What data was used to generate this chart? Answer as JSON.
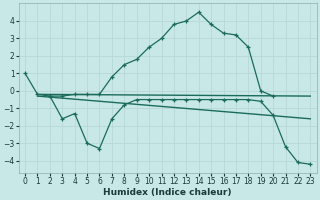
{
  "xlabel": "Humidex (Indice chaleur)",
  "xlim": [
    -0.5,
    23.5
  ],
  "ylim": [
    -4.7,
    5.0
  ],
  "yticks": [
    -4,
    -3,
    -2,
    -1,
    0,
    1,
    2,
    3,
    4
  ],
  "xticks": [
    0,
    1,
    2,
    3,
    4,
    5,
    6,
    7,
    8,
    9,
    10,
    11,
    12,
    13,
    14,
    15,
    16,
    17,
    18,
    19,
    20,
    21,
    22,
    23
  ],
  "bg_color": "#c8e8e8",
  "grid_color": "#d8ecec",
  "line_color": "#1a6b5a",
  "line1_x": [
    0,
    1,
    2,
    3,
    4,
    5,
    6,
    7,
    8,
    9,
    10,
    11,
    12,
    13,
    14,
    15,
    16,
    17,
    18,
    19,
    20
  ],
  "line1_y": [
    1.0,
    -0.2,
    -0.3,
    -0.3,
    -0.2,
    -0.2,
    -0.2,
    0.8,
    1.5,
    1.8,
    2.5,
    3.0,
    3.8,
    4.0,
    4.5,
    3.8,
    3.3,
    3.2,
    2.5,
    0.0,
    -0.3
  ],
  "line2_x": [
    2,
    3,
    4,
    5,
    6,
    7,
    8,
    9,
    10,
    11,
    12,
    13,
    14,
    15,
    16,
    17,
    18,
    19,
    20,
    21,
    22,
    23
  ],
  "line2_y": [
    -0.3,
    -1.6,
    -1.3,
    -3.0,
    -3.3,
    -1.6,
    -0.8,
    -0.5,
    -0.5,
    -0.5,
    -0.5,
    -0.5,
    -0.5,
    -0.5,
    -0.5,
    -0.5,
    -0.5,
    -0.6,
    -1.4,
    -3.2,
    -4.1,
    -4.2
  ],
  "line3_x": [
    1,
    23
  ],
  "line3_y": [
    -0.2,
    -0.3
  ],
  "line4_x": [
    1,
    23
  ],
  "line4_y": [
    -0.3,
    -1.6
  ]
}
